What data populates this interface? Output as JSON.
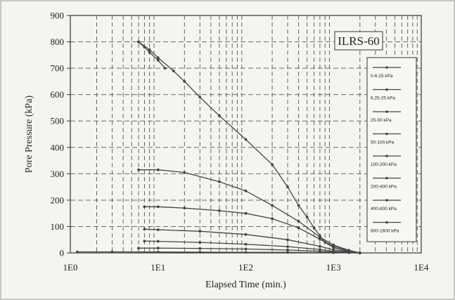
{
  "chart_data": {
    "type": "line",
    "title": "",
    "annotation": "ILRS-60",
    "xlabel": "Elapsed Time (min.)",
    "ylabel": "Pore Pressure  (kPa)",
    "x_scale": "log",
    "xlim": [
      1,
      10000
    ],
    "ylim": [
      0,
      900
    ],
    "x_ticks": [
      "1E0",
      "1E1",
      "1E2",
      "1E3",
      "1E4"
    ],
    "y_ticks": [
      "0",
      "100",
      "200",
      "300",
      "400",
      "500",
      "600",
      "700",
      "800",
      "900"
    ],
    "grid": true,
    "legend_position": "right",
    "series": [
      {
        "name": "0-6.25 kPa",
        "x": [
          1.2,
          3,
          10,
          30,
          100,
          300,
          1000,
          2000
        ],
        "y": [
          4,
          4,
          3.5,
          3,
          2.5,
          2,
          1,
          0
        ]
      },
      {
        "name": "6.25-25 kPa",
        "x": [
          6,
          10,
          30,
          100,
          300,
          700,
          1000,
          1500,
          2000
        ],
        "y": [
          18,
          18,
          17,
          15,
          11,
          6,
          3,
          1,
          0
        ]
      },
      {
        "name": "25-50 kPa",
        "x": [
          7,
          10,
          30,
          100,
          300,
          700,
          1000,
          1500,
          2000
        ],
        "y": [
          45,
          44,
          40,
          33,
          24,
          13,
          6,
          2,
          0
        ]
      },
      {
        "name": "50-100 kPa",
        "x": [
          7,
          10,
          30,
          100,
          300,
          700,
          1000,
          1500,
          2000
        ],
        "y": [
          90,
          88,
          82,
          70,
          50,
          25,
          12,
          4,
          0
        ]
      },
      {
        "name": "100-200 kPa",
        "x": [
          7,
          10,
          20,
          50,
          100,
          200,
          400,
          700,
          1000,
          1500,
          2000
        ],
        "y": [
          175,
          175,
          170,
          160,
          150,
          130,
          95,
          52,
          25,
          8,
          0
        ]
      },
      {
        "name": "200-400 kPa",
        "x": [
          6,
          10,
          20,
          50,
          100,
          200,
          400,
          700,
          1000,
          1500,
          2000
        ],
        "y": [
          315,
          315,
          305,
          270,
          235,
          180,
          120,
          60,
          30,
          10,
          0
        ]
      },
      {
        "name": "400-800 kPa",
        "x": [
          6,
          8,
          10,
          15,
          20,
          30,
          50,
          100,
          200,
          300,
          400,
          500,
          600,
          700,
          800,
          1000,
          1500,
          2000
        ],
        "y": [
          800,
          770,
          740,
          690,
          650,
          590,
          520,
          430,
          335,
          250,
          180,
          135,
          95,
          65,
          40,
          20,
          5,
          0
        ]
      },
      {
        "name": "800-1600 kPa",
        "x": [
          6,
          7,
          8,
          10,
          12
        ],
        "y": [
          800,
          780,
          760,
          730,
          700
        ]
      }
    ]
  }
}
